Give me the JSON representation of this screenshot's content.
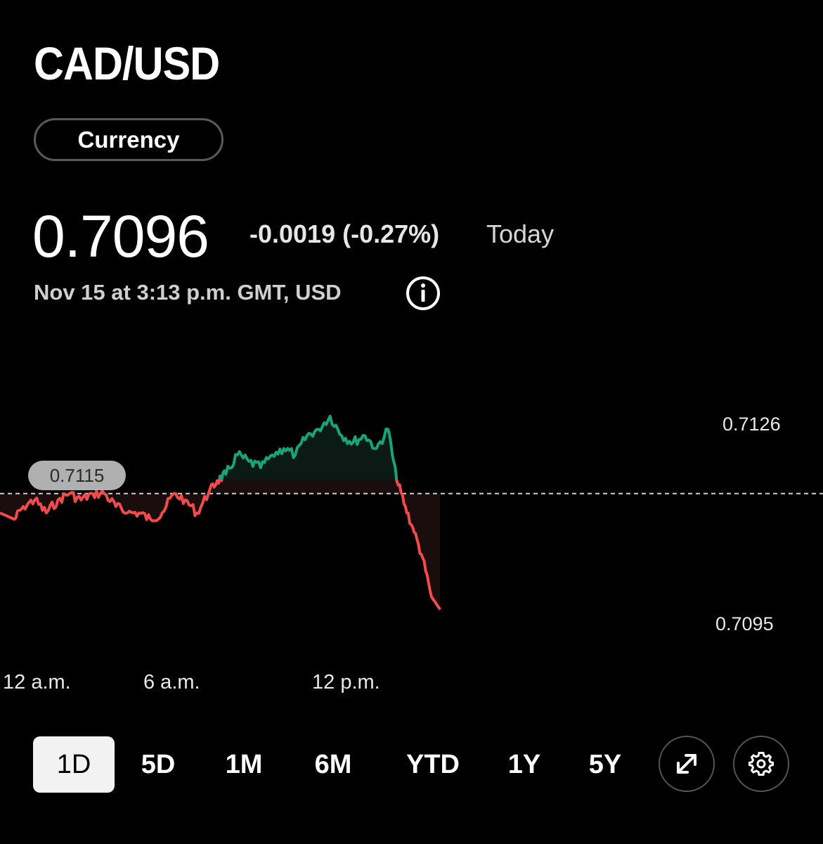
{
  "header": {
    "title": "CAD/USD",
    "badge": "Currency"
  },
  "quote": {
    "price": "0.7096",
    "change": "-0.0019 (-0.27%)",
    "period": "Today",
    "timestamp": "Nov 15 at 3:13 p.m. GMT, USD"
  },
  "colors": {
    "background": "#000000",
    "up": "#1aa37a",
    "down": "#f24b4b"
  },
  "chart_data": {
    "type": "line",
    "x_tick_labels": [
      "12 a.m.",
      "6 a.m.",
      "12 p.m."
    ],
    "y_tick_labels": [
      "0.7126",
      "0.7095"
    ],
    "previous_close_label": "0.7115",
    "previous_close": 0.7115,
    "ylim": [
      0.7095,
      0.7126
    ],
    "x_hours": [
      0,
      0.5,
      0.8,
      1.2,
      1.6,
      2.0,
      2.4,
      2.8,
      3.2,
      3.6,
      4.0,
      4.4,
      4.8,
      5.2,
      5.6,
      6.0,
      6.4,
      6.8,
      7.2,
      7.5,
      7.8,
      8.2,
      8.6,
      9.0,
      9.4,
      9.8,
      10.2,
      10.6,
      11.0,
      11.4,
      11.8,
      12.2,
      12.6,
      13.0,
      13.4,
      13.7,
      14.0,
      14.3,
      14.6,
      14.9,
      15.2
    ],
    "values": [
      0.7112,
      0.7111,
      0.7113,
      0.7114,
      0.7112,
      0.7114,
      0.7115,
      0.7114,
      0.7115,
      0.7115,
      0.7113,
      0.7112,
      0.7112,
      0.7111,
      0.7112,
      0.7115,
      0.7114,
      0.7112,
      0.7115,
      0.7117,
      0.7118,
      0.7121,
      0.712,
      0.7119,
      0.7121,
      0.7122,
      0.7121,
      0.7124,
      0.7125,
      0.7127,
      0.7124,
      0.7123,
      0.7124,
      0.7122,
      0.7125,
      0.7117,
      0.7113,
      0.7109,
      0.7105,
      0.7099,
      0.7097
    ]
  },
  "ranges": [
    "1D",
    "5D",
    "1M",
    "6M",
    "YTD",
    "1Y",
    "5Y"
  ],
  "active_range": "1D",
  "icons": {
    "info": "info-icon",
    "expand": "expand-icon",
    "settings": "gear-icon"
  }
}
